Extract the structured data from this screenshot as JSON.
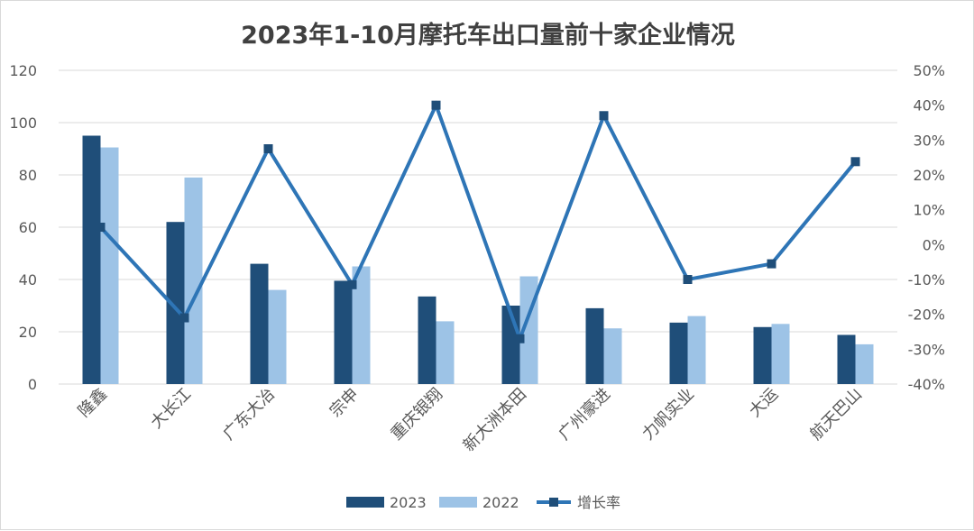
{
  "chart_data": {
    "type": "bar",
    "title": "2023年1-10月摩托车出口量前十家企业情况",
    "categories": [
      "隆鑫",
      "大长江",
      "广东大冶",
      "宗申",
      "重庆银翔",
      "新大洲本田",
      "广州豪进",
      "力帆实业",
      "大运",
      "航天巴山"
    ],
    "series": [
      {
        "name": "2023",
        "type": "bar",
        "axis": "left",
        "color": "#1f4e79",
        "values": [
          95,
          62,
          46,
          39.5,
          33.5,
          30,
          29,
          23.5,
          21.8,
          18.8
        ]
      },
      {
        "name": "2022",
        "type": "bar",
        "axis": "left",
        "color": "#9dc3e6",
        "values": [
          90.5,
          79,
          36,
          45,
          24,
          41.2,
          21.3,
          26,
          23,
          15.2
        ]
      },
      {
        "name": "增长率",
        "type": "line",
        "axis": "right",
        "color": "#2e75b6",
        "values": [
          5,
          -21,
          27.5,
          -11.5,
          40,
          -27,
          37,
          -10,
          -5.5,
          23.8
        ]
      }
    ],
    "ylim_left": [
      0,
      120
    ],
    "yticks_left": [
      "0",
      "20",
      "40",
      "60",
      "80",
      "100",
      "120"
    ],
    "ylim_right": [
      -40,
      50
    ],
    "yticks_right": [
      "-40%",
      "-30%",
      "-20%",
      "-10%",
      "0%",
      "10%",
      "20%",
      "30%",
      "40%",
      "50%"
    ],
    "grid": true,
    "legend_position": "bottom"
  }
}
